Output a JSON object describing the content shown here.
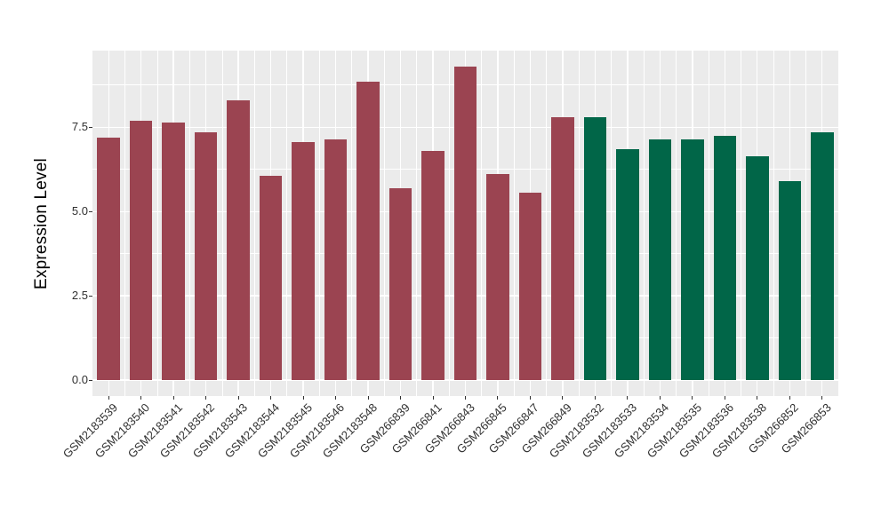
{
  "chart_data": {
    "type": "bar",
    "title": "",
    "xlabel": "",
    "ylabel": "Expression Level",
    "categories": [
      "GSM2183539",
      "GSM2183540",
      "GSM2183541",
      "GSM2183542",
      "GSM2183543",
      "GSM2183544",
      "GSM2183545",
      "GSM2183546",
      "GSM2183548",
      "GSM266839",
      "GSM266841",
      "GSM266843",
      "GSM266845",
      "GSM266847",
      "GSM266849",
      "GSM2183532",
      "GSM2183533",
      "GSM2183534",
      "GSM2183535",
      "GSM2183536",
      "GSM2183538",
      "GSM266852",
      "GSM266853"
    ],
    "values": [
      7.2,
      7.7,
      7.65,
      7.35,
      8.3,
      6.05,
      7.05,
      7.15,
      8.85,
      5.7,
      6.8,
      9.3,
      6.1,
      5.55,
      7.8,
      7.8,
      6.85,
      7.15,
      7.15,
      7.25,
      6.65,
      5.9,
      7.35
    ],
    "bar_group_index": [
      0,
      0,
      0,
      0,
      0,
      0,
      0,
      0,
      0,
      0,
      0,
      0,
      0,
      0,
      0,
      1,
      1,
      1,
      1,
      1,
      1,
      1,
      1
    ],
    "group_colors": [
      "#9B4451",
      "#016648"
    ],
    "y_tick_labels": [
      "0.0",
      "2.5",
      "5.0",
      "7.5"
    ],
    "y_ticks": [
      0,
      2.5,
      5.0,
      7.5
    ],
    "y_minor_ticks": [
      1.25,
      3.75,
      6.25,
      8.75
    ],
    "ylim": [
      -0.47,
      9.77
    ],
    "grid": "on",
    "legend_position": "none",
    "panel_background": "#EBEBEB",
    "grid_color": "#FFFFFF",
    "tick_color": "#333333",
    "axis_text_color": "#303030"
  }
}
